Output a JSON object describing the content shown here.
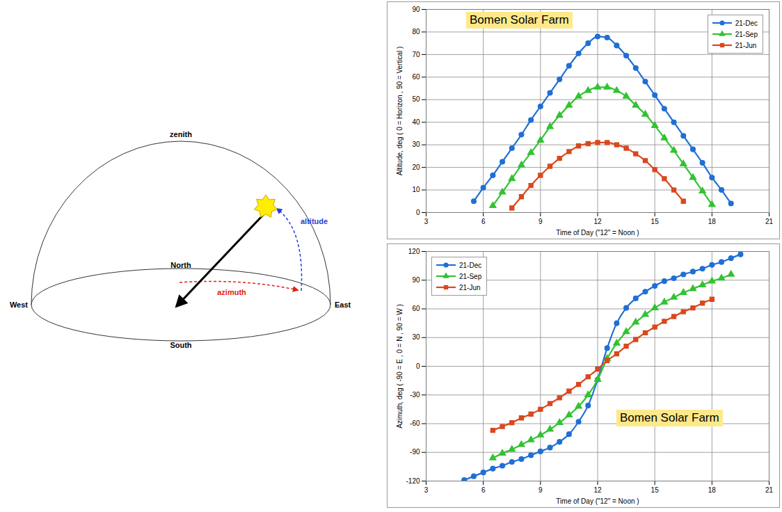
{
  "diagram": {
    "labels": {
      "zenith": "zenith",
      "north": "North",
      "south": "South",
      "west": "West",
      "east": "East",
      "altitude": "altitude",
      "azimuth": "azimuth"
    }
  },
  "chart_data": [
    {
      "type": "line",
      "annotation": "Bomen Solar Farm",
      "x_label": "Time of Day (\"12\" = Noon )",
      "y_label": "Altitude, deg ( 0 = Horizon , 90 = Vertical )",
      "xlim": [
        3,
        21
      ],
      "xticks": [
        3,
        6,
        9,
        12,
        15,
        18,
        21
      ],
      "ylim": [
        0,
        90
      ],
      "yticks": [
        0,
        10,
        20,
        30,
        40,
        50,
        60,
        70,
        80,
        90
      ],
      "grid": true,
      "legend": "top-right",
      "x": [
        5.5,
        6,
        6.5,
        7,
        7.5,
        8,
        8.5,
        9,
        9.5,
        10,
        10.5,
        11,
        11.5,
        12,
        12.5,
        13,
        13.5,
        14,
        14.5,
        15,
        15.5,
        16,
        16.5,
        17,
        17.5,
        18,
        18.5,
        19
      ],
      "series": [
        {
          "name": "21-Dec",
          "color": "#1f6fd6",
          "marker": "circle",
          "values": [
            5,
            11,
            16.5,
            22.5,
            28.5,
            34.5,
            41,
            47,
            53,
            59,
            65,
            70.5,
            75,
            78,
            77.5,
            74,
            69.5,
            64,
            58,
            52,
            46,
            40,
            34,
            28,
            22,
            15.5,
            10,
            4
          ]
        },
        {
          "name": "21-Sep",
          "color": "#33c233",
          "marker": "triangle",
          "values": [
            null,
            null,
            3,
            9,
            15,
            21,
            26.5,
            32,
            38,
            43,
            47.5,
            51.5,
            54,
            55.5,
            55.5,
            54,
            51.5,
            47.5,
            43.5,
            38.5,
            33,
            27.5,
            21.5,
            15.5,
            9.5,
            3.5,
            null,
            null
          ]
        },
        {
          "name": "21-Jun",
          "color": "#d9481e",
          "marker": "square",
          "values": [
            null,
            null,
            null,
            null,
            2,
            7,
            12,
            16.5,
            20.5,
            24,
            27,
            29.5,
            30.5,
            31,
            31,
            30,
            28.5,
            26,
            23,
            19,
            15,
            10,
            5,
            null,
            null,
            null,
            null,
            null
          ]
        }
      ]
    },
    {
      "type": "line",
      "annotation": "Bomen Solar Farm",
      "x_label": "Time of Day (\"12\" = Noon )",
      "y_label": "Azimuth, deg ( -90 = E , 0 = N , 90 = W )",
      "xlim": [
        3,
        21
      ],
      "xticks": [
        3,
        6,
        9,
        12,
        15,
        18,
        21
      ],
      "ylim": [
        -120,
        120
      ],
      "yticks": [
        -120,
        -90,
        -60,
        -30,
        0,
        30,
        60,
        90,
        120
      ],
      "grid": true,
      "legend": "top-left",
      "x": [
        5,
        5.5,
        6,
        6.5,
        7,
        7.5,
        8,
        8.5,
        9,
        9.5,
        10,
        10.5,
        11,
        11.5,
        12,
        12.5,
        13,
        13.5,
        14,
        14.5,
        15,
        15.5,
        16,
        16.5,
        17,
        17.5,
        18,
        18.5,
        19,
        19.5
      ],
      "series": [
        {
          "name": "21-Dec",
          "color": "#1f6fd6",
          "marker": "circle",
          "values": [
            -119,
            -115,
            -111,
            -107,
            -104,
            -100,
            -97,
            -93,
            -89,
            -85,
            -79,
            -71,
            -58,
            -41,
            -14,
            19,
            45,
            61,
            71,
            78,
            84,
            89,
            92,
            96,
            99,
            102,
            106,
            109,
            113,
            117
          ]
        },
        {
          "name": "21-Sep",
          "color": "#33c233",
          "marker": "triangle",
          "values": [
            null,
            null,
            null,
            -96,
            -91,
            -87,
            -82,
            -77,
            -72,
            -66,
            -59,
            -51,
            -42,
            -30,
            -14,
            8,
            24,
            36,
            46,
            54,
            61,
            67,
            72,
            77,
            81,
            85,
            89,
            92,
            96,
            null
          ]
        },
        {
          "name": "21-Jun",
          "color": "#d9481e",
          "marker": "square",
          "values": [
            null,
            null,
            null,
            -67,
            -63,
            -59,
            -54,
            -50,
            -45,
            -39,
            -33,
            -26,
            -19,
            -11,
            -3,
            6,
            13,
            21,
            28,
            35,
            41,
            47,
            52,
            57,
            61,
            66,
            70,
            null,
            null,
            null
          ]
        }
      ]
    }
  ]
}
